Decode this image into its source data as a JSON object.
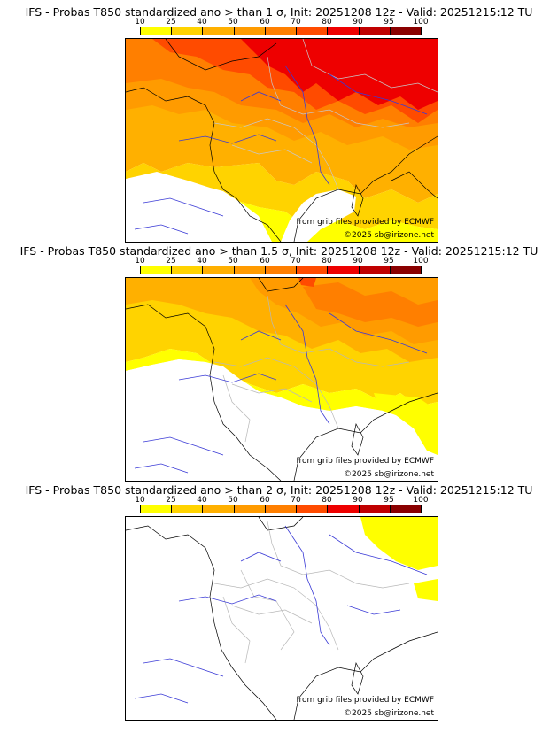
{
  "colorbar": {
    "levels": [
      "10",
      "25",
      "40",
      "50",
      "60",
      "70",
      "80",
      "90",
      "95",
      "100"
    ],
    "colors": [
      "#ffff00",
      "#ffd300",
      "#ffb000",
      "#ff9b00",
      "#ff7f00",
      "#ff4b00",
      "#ee0000",
      "#c00000",
      "#8a0000"
    ]
  },
  "panels": [
    {
      "title": "IFS - Probas T850  standardized ano > than 1 σ, Init: 20251208 12z - Valid: 20251215:12 TU"
    },
    {
      "title": "IFS - Probas T850  standardized ano > than 1.5 σ, Init: 20251208 12z - Valid: 20251215:12 TU"
    },
    {
      "title": "IFS - Probas T850  standardized ano > than 2 σ, Init: 20251208 12z - Valid: 20251215:12 TU"
    }
  ],
  "credits": {
    "grib": "from grib files provided by ECMWF",
    "copyright": "©2025 sb@irizone.net"
  }
}
